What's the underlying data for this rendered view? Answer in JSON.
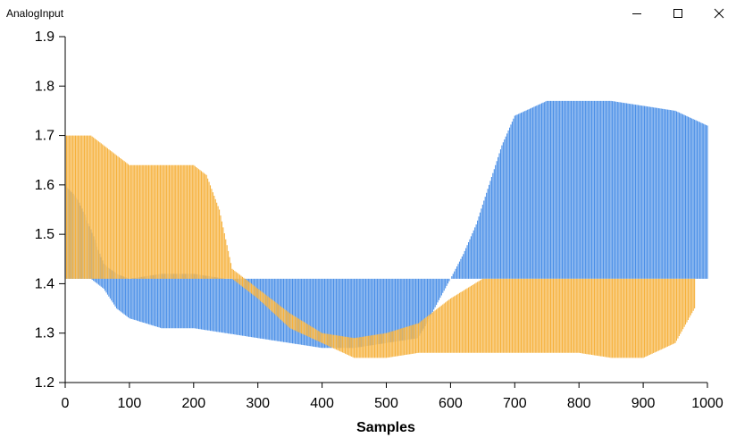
{
  "window": {
    "title": "AnalogInput",
    "minimize_icon": "minimize-icon",
    "maximize_icon": "maximize-icon",
    "close_icon": "close-icon"
  },
  "colors": {
    "series_blue": "#4a8fe7",
    "series_orange": "#f6b13c",
    "axis": "#000000"
  },
  "chart_data": {
    "type": "line",
    "title": "",
    "xlabel": "Samples",
    "ylabel": "",
    "xlim": [
      0,
      1000
    ],
    "ylim": [
      1.2,
      1.9
    ],
    "x_ticks": [
      0,
      100,
      200,
      300,
      400,
      500,
      600,
      700,
      800,
      900,
      1000
    ],
    "x_tick_labels": [
      "0",
      "100",
      "200",
      "300",
      "400",
      "500",
      "600",
      "700",
      "800",
      "900",
      "1000"
    ],
    "y_ticks": [
      1.2,
      1.3,
      1.4,
      1.5,
      1.6,
      1.7,
      1.8,
      1.9
    ],
    "y_tick_labels": [
      "1.2",
      "1.3",
      "1.4",
      "1.5",
      "1.6",
      "1.7",
      "1.8",
      "1.9"
    ],
    "grid": false,
    "legend": "none",
    "series": [
      {
        "name": "blue",
        "color": "#4a8fe7",
        "x": [
          0,
          20,
          40,
          60,
          80,
          100,
          150,
          200,
          250,
          300,
          350,
          400,
          450,
          500,
          550,
          600,
          620,
          640,
          660,
          680,
          700,
          750,
          800,
          850,
          900,
          950,
          1000
        ],
        "low": [
          1.41,
          1.41,
          1.41,
          1.39,
          1.35,
          1.33,
          1.31,
          1.31,
          1.3,
          1.29,
          1.28,
          1.27,
          1.27,
          1.28,
          1.29,
          1.41,
          1.41,
          1.41,
          1.41,
          1.41,
          1.41,
          1.41,
          1.41,
          1.41,
          1.41,
          1.41,
          1.41
        ],
        "high": [
          1.6,
          1.57,
          1.51,
          1.44,
          1.42,
          1.41,
          1.42,
          1.42,
          1.41,
          1.41,
          1.41,
          1.41,
          1.41,
          1.41,
          1.41,
          1.41,
          1.46,
          1.52,
          1.6,
          1.68,
          1.74,
          1.77,
          1.77,
          1.77,
          1.76,
          1.75,
          1.72
        ]
      },
      {
        "name": "orange",
        "color": "#f6b13c",
        "x": [
          0,
          40,
          60,
          80,
          100,
          150,
          200,
          220,
          240,
          260,
          300,
          350,
          400,
          450,
          500,
          550,
          600,
          650,
          700,
          750,
          800,
          850,
          900,
          950,
          980
        ],
        "low": [
          1.41,
          1.41,
          1.41,
          1.41,
          1.41,
          1.41,
          1.41,
          1.41,
          1.41,
          1.41,
          1.37,
          1.31,
          1.28,
          1.25,
          1.25,
          1.26,
          1.26,
          1.26,
          1.26,
          1.26,
          1.26,
          1.25,
          1.25,
          1.28,
          1.35
        ],
        "high": [
          1.7,
          1.7,
          1.68,
          1.66,
          1.64,
          1.64,
          1.64,
          1.62,
          1.55,
          1.43,
          1.39,
          1.34,
          1.3,
          1.29,
          1.3,
          1.32,
          1.37,
          1.41,
          1.41,
          1.41,
          1.41,
          1.41,
          1.41,
          1.41,
          1.41
        ]
      }
    ]
  }
}
